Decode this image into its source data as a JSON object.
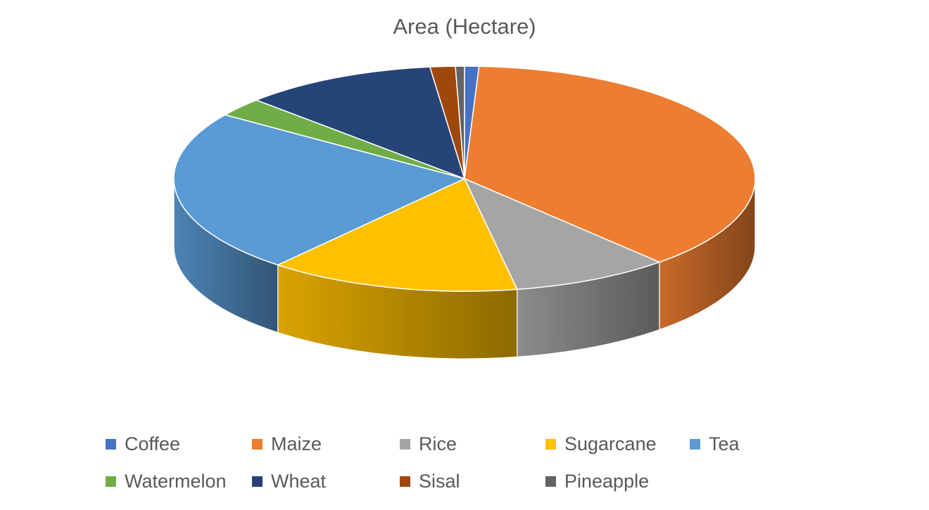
{
  "chart_data": {
    "type": "pie",
    "title": "Area (Hectare)",
    "categories": [
      "Coffee",
      "Maize",
      "Rice",
      "Sugarcane",
      "Tea",
      "Watermelon",
      "Wheat",
      "Sisal",
      "Pineapple"
    ],
    "values": [
      0.8,
      37.5,
      8.8,
      14.0,
      23.5,
      2.7,
      10.8,
      1.4,
      0.5
    ],
    "unit": "percent of total",
    "colors": [
      "#4472C4",
      "#ED7D31",
      "#A5A5A5",
      "#FFC000",
      "#5B9BD5",
      "#70AD47",
      "#264478",
      "#9E480E",
      "#636363"
    ],
    "legend_position": "bottom",
    "style": "3d-pie"
  }
}
